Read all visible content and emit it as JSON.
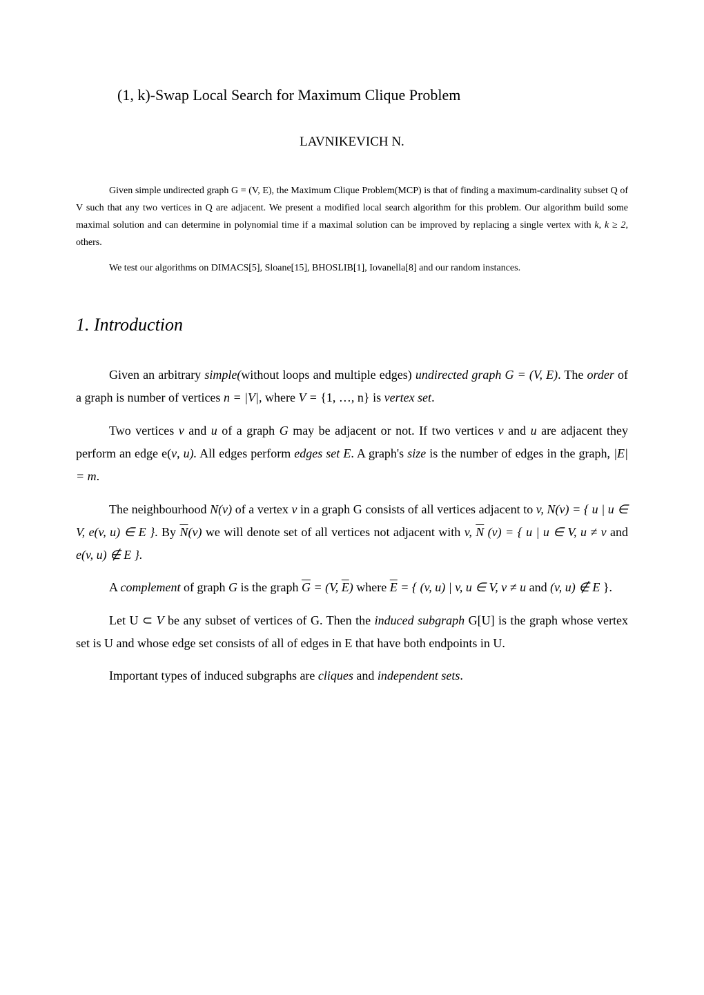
{
  "title": "(1, k)-Swap Local Search for Maximum Clique Problem",
  "author": "LAVNIKEVICH N.",
  "abstract": {
    "para1_a": "Given simple undirected  graph G = (V, E), the Maximum Clique Problem(MCP) is that of finding a maximum-cardinality subset Q of V such that any two vertices in Q are adjacent. We present a modified local search algorithm for this problem. Our algorithm build some maximal solution and can determine in polynomial time if a maximal solution can be improved by replacing a single vertex with ",
    "para1_k": "k",
    "para1_b": ", ",
    "para1_k2": "k ≥ 2,",
    "para1_c": " others.",
    "para2": "We test our algorithms on DIMACS[5], Sloane[15], BHOSLIB[1], Iovanella[8]  and our random instances."
  },
  "section1_heading": "1. Introduction",
  "p1": {
    "a": "Given an arbitrary ",
    "simple": "simple(",
    "b": "without loops and multiple edges) ",
    "undirected": "undirected graph G = (V, E)",
    "c": ". The ",
    "order": "order",
    "d": " of a graph is  number of vertices ",
    "n_eq": "n = |V|,",
    "e": " where ",
    "V_eq": "V  = ",
    "f": "{1, …, n} is ",
    "vertex_set": "vertex set",
    "g": "."
  },
  "p2": {
    "a": "Two vertices ",
    "v": "v",
    "b": " and ",
    "u": "u",
    "c": " of a graph ",
    "G": "G ",
    "d": " may be adjacent or not. If two vertices ",
    "v2": "v",
    "e": " and ",
    "u2": "u",
    "f": " are adjacent they perform an edge e(",
    "v3": "v",
    "g": ", ",
    "u3": "u).",
    "h": " All edges perform ",
    "edges_set": "edges set E",
    "i": ". A graph's ",
    "size": "size",
    "j": " is the number of edges in the graph,  ",
    "E_eq": "|E| = m",
    "k": "."
  },
  "p3": {
    "a": " The neighbourhood ",
    "Nv": "N(v)",
    "b": " of  a  vertex ",
    "v": "v",
    "c": " in  a  graph G  consists  of  all  vertices adjacent to ",
    "v2": "v, N(v) = { u  |  u ∈ V, e(v, u) ∈ E }",
    "d": ". By ",
    "Nbar": "N",
    "Nv2": "(v)",
    "e": " we will denote set of all vertices not adjacent with ",
    "v3": "v, ",
    "Nbar2": "N",
    "Nv3": " (v) = { u  |  u ∈ V,  u ≠ v ",
    "f": "and ",
    "ev": "e(v, u) ∉ E }.",
    "g": ""
  },
  "p4": {
    "a": "A ",
    "complement": "complement",
    "b": " of graph ",
    "G": "G ",
    "c": " is the graph ",
    "Gbar": "G",
    "eq": " = (V,  ",
    "Ebar": "E",
    "d": ")",
    "e": " where ",
    "Ebar2": "E",
    "f": " = { ",
    "vu": "(v, u)  |  v, u ∈ V, v ≠ u ",
    "g": "and ",
    "vu2": "(v, u) ∉ E ",
    "h": "}."
  },
  "p5": {
    "a": "Let U ⊂ ",
    "V": "V",
    "b": " be any subset of vertices of G. Then the ",
    "induced": "induced subgraph",
    "c": " G[U] is the graph whose vertex set is U and whose edge set consists of all of edges in E that have both endpoints in U."
  },
  "p6": {
    "a": "Important types of induced subgraphs are ",
    "cliques": "cliques",
    "b": " and ",
    "independent": "independent sets",
    "c": "."
  }
}
